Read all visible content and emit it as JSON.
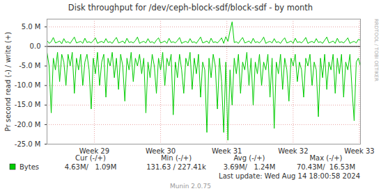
{
  "chart_data": {
    "type": "line",
    "title": "Disk throughput for /dev/ceph-block-sdf/block-sdf - by month",
    "y_label": "Pr second read (-) / write (+)",
    "x": [
      0,
      1,
      2,
      3,
      4,
      5,
      6,
      7,
      8,
      9,
      10,
      11,
      12,
      13,
      14,
      15,
      16,
      17,
      18,
      19,
      20,
      21,
      22,
      23,
      24,
      25,
      26,
      27,
      28,
      29,
      30,
      31,
      32,
      33,
      34,
      35,
      36,
      37,
      38,
      39,
      40,
      41,
      42,
      43,
      44,
      45,
      46,
      47,
      48,
      49,
      50,
      51,
      52,
      53,
      54,
      55,
      56,
      57,
      58,
      59,
      60,
      61,
      62,
      63,
      64,
      65,
      66,
      67,
      68,
      69,
      70,
      71,
      72,
      73,
      74,
      75,
      76,
      77,
      78,
      79,
      80,
      81,
      82,
      83,
      84,
      85,
      86,
      87,
      88,
      89,
      90,
      91,
      92,
      93,
      94,
      95,
      96,
      97,
      98,
      99,
      100,
      101,
      102,
      103,
      104,
      105,
      106,
      107,
      108,
      109,
      110,
      111,
      112,
      113,
      114,
      115,
      116,
      117,
      118,
      119,
      120,
      121,
      122,
      123,
      124,
      125,
      126,
      127,
      128,
      129,
      130,
      131,
      132,
      133,
      134,
      135,
      136,
      137,
      138,
      139,
      140,
      141,
      142,
      143,
      144,
      145,
      146,
      147,
      148,
      149
    ],
    "xlim": [
      0,
      149
    ],
    "xticks": [
      {
        "value": 22.5,
        "label": "Week 29"
      },
      {
        "value": 54,
        "label": "Week 30"
      },
      {
        "value": 85.5,
        "label": "Week 31"
      },
      {
        "value": 117,
        "label": "Week 32"
      },
      {
        "value": 148.5,
        "label": "Week 33"
      }
    ],
    "ylim": [
      -25000000,
      7000000
    ],
    "yticks": [
      {
        "value": -25000000,
        "label": "-25.0 M"
      },
      {
        "value": -20000000,
        "label": "-20.0 M"
      },
      {
        "value": -15000000,
        "label": "-15.0 M"
      },
      {
        "value": -10000000,
        "label": "-10.0 M"
      },
      {
        "value": -5000000,
        "label": "-5.0 M"
      },
      {
        "value": 0,
        "label": "0.0"
      },
      {
        "value": 5000000,
        "label": "5.0 M"
      }
    ],
    "grid": true,
    "series": [
      {
        "name": "Bytes",
        "color": "#00cc00",
        "values": [
          1500000,
          800000,
          1200000,
          2300000,
          900000,
          1100000,
          1400000,
          700000,
          2000000,
          1000000,
          1200000,
          800000,
          1600000,
          2400000,
          900000,
          1100000,
          1300000,
          800000,
          2100000,
          1000000,
          1200000,
          900000,
          1500000,
          2200000,
          800000,
          1100000,
          1300000,
          900000,
          2000000,
          1000000,
          1200000,
          800000,
          1600000,
          2300000,
          900000,
          1100000,
          1400000,
          800000,
          2100000,
          1000000,
          1200000,
          900000,
          1500000,
          2400000,
          800000,
          1100000,
          1300000,
          900000,
          2000000,
          1000000,
          1200000,
          800000,
          1600000,
          2200000,
          900000,
          1100000,
          1400000,
          800000,
          2100000,
          1000000,
          1200000,
          900000,
          1500000,
          2300000,
          800000,
          1100000,
          1300000,
          900000,
          2000000,
          1000000,
          1200000,
          800000,
          1600000,
          2400000,
          900000,
          1100000,
          1400000,
          800000,
          2100000,
          1000000,
          1200000,
          900000,
          1500000,
          2200000,
          800000,
          2500000,
          1300000,
          4000000,
          6300000,
          1000000,
          1200000,
          800000,
          1600000,
          2300000,
          900000,
          1100000,
          1400000,
          800000,
          2100000,
          1000000,
          1200000,
          900000,
          1500000,
          2400000,
          800000,
          1100000,
          1300000,
          900000,
          2000000,
          1000000,
          1200000,
          800000,
          1600000,
          2200000,
          900000,
          1100000,
          1400000,
          800000,
          2100000,
          1000000,
          1200000,
          900000,
          1500000,
          2300000,
          800000,
          1100000,
          1300000,
          900000,
          2000000,
          1000000,
          1200000,
          800000,
          1600000,
          2400000,
          900000,
          1100000,
          1400000,
          800000,
          2100000,
          1000000,
          1200000,
          900000,
          1500000,
          2200000,
          800000,
          1100000,
          1300000,
          900000,
          1800000,
          1600000
        ]
      },
      {
        "name": "Bytes",
        "color": "#00cc00",
        "values": [
          -1500000,
          -5000000,
          -17000000,
          -3000000,
          -6000000,
          -1500000,
          -9000000,
          -2000000,
          -4000000,
          -10000000,
          -2000000,
          -5000000,
          -1500000,
          -12000000,
          -3000000,
          -6000000,
          -2000000,
          -10000000,
          -4000000,
          -2000000,
          -6000000,
          -16000000,
          -3000000,
          -7000000,
          -1500000,
          -10000000,
          -4000000,
          -2000000,
          -13000000,
          -3000000,
          -5000000,
          -1500000,
          -8000000,
          -3000000,
          -11000000,
          -2000000,
          -5000000,
          -14000000,
          -3000000,
          -6000000,
          -1500000,
          -9000000,
          -3000000,
          -5000000,
          -2000000,
          -7000000,
          -3000000,
          -17000000,
          -4000000,
          -8000000,
          -2000000,
          -5000000,
          -12000000,
          -3000000,
          -6000000,
          -1500000,
          -10000000,
          -3000000,
          -5000000,
          -2000000,
          -17500000,
          -4000000,
          -8000000,
          -2000000,
          -6000000,
          -12000000,
          -3000000,
          -5000000,
          -1500000,
          -11000000,
          -3000000,
          -7000000,
          -2000000,
          -13000000,
          -4000000,
          -6000000,
          -22000000,
          -3000000,
          -8000000,
          -2000000,
          -5000000,
          -16000000,
          -3000000,
          -9000000,
          -22000000,
          -4000000,
          -24000000,
          -6000000,
          -15000000,
          -3000000,
          -7000000,
          -2000000,
          -12000000,
          -4000000,
          -6000000,
          -1500000,
          -10000000,
          -3000000,
          -15000000,
          -4000000,
          -7000000,
          -2000000,
          -10000000,
          -4000000,
          -6000000,
          -2000000,
          -13000000,
          -3000000,
          -21000000,
          -4000000,
          -7000000,
          -2000000,
          -11000000,
          -3000000,
          -6000000,
          -14000000,
          -3000000,
          -5000000,
          -2000000,
          -9000000,
          -4000000,
          -6000000,
          -13000000,
          -3000000,
          -5000000,
          -2000000,
          -10000000,
          -4000000,
          -6000000,
          -18000000,
          -3000000,
          -8000000,
          -2000000,
          -11000000,
          -4000000,
          -6000000,
          -2000000,
          -12000000,
          -3000000,
          -7000000,
          -2000000,
          -13000000,
          -4000000,
          -6000000,
          -2000000,
          -11000000,
          -19000000,
          -4000000,
          -3000000,
          -5000000
        ]
      }
    ],
    "legend_stats_headers": [
      "Cur (-/+)",
      "Min (-/+)",
      "Avg (-/+)",
      "Max (-/+)"
    ],
    "legend_stats": [
      "4.63M/   1.09M",
      "131.63 / 227.41k",
      "3.69M/   1.24M",
      "70.43M/  16.53M"
    ],
    "footer": "Last update: Wed Aug 14 18:00:58 2024",
    "credit": "Munin 2.0.75",
    "watermark": "RRDTOOL / TOBI OETIKER"
  }
}
